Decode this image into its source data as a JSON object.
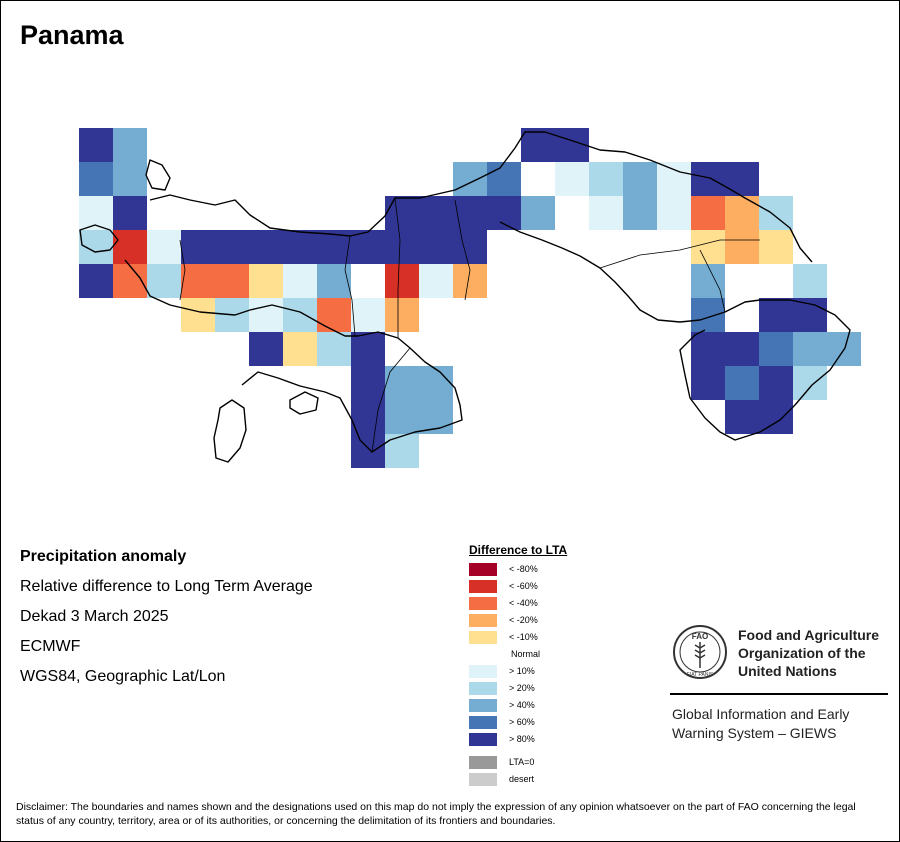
{
  "map": {
    "title": "Panama",
    "info_lines": [
      "Precipitation anomaly",
      "Relative difference to Long Term Average",
      "Dekad 3 March 2025",
      "ECMWF",
      "WGS84, Geographic Lat/Lon"
    ]
  },
  "legend": {
    "title": "Difference to LTA",
    "items": [
      {
        "label": "< -80%",
        "color": "#a50026"
      },
      {
        "label": "< -60%",
        "color": "#d73027"
      },
      {
        "label": "< -40%",
        "color": "#f46d43"
      },
      {
        "label": "< -20%",
        "color": "#fdae61"
      },
      {
        "label": "< -10%",
        "color": "#fee090"
      },
      {
        "label": "Normal",
        "color": "#ffffff"
      },
      {
        "label": "> 10%",
        "color": "#e0f3f8"
      },
      {
        "label": "> 20%",
        "color": "#abd9e9"
      },
      {
        "label": "> 40%",
        "color": "#74add1"
      },
      {
        "label": "> 60%",
        "color": "#4575b4"
      },
      {
        "label": "> 80%",
        "color": "#313695"
      }
    ],
    "extra": [
      {
        "label": "LTA=0",
        "color": "#999999"
      },
      {
        "label": "desert",
        "color": "#cccccc"
      }
    ]
  },
  "fao": {
    "name_lines": [
      "Food and Agriculture",
      "Organization of the",
      "United Nations"
    ],
    "giews_lines": [
      "Global Information and Early",
      "Warning System – GIEWS"
    ],
    "logo_letters": "FAO",
    "logo_motto": "FIAT PANIS",
    "logo_icon": "wheat-ear-icon"
  },
  "disclaimer": "Disclaimer: The boundaries and names shown and the designations used on this map do not imply the expression of any opinion whatsoever on the part of FAO concerning the legal status of any country, territory, area or of its authorities, or concerning the delimitation of its frontiers and boundaries."
}
